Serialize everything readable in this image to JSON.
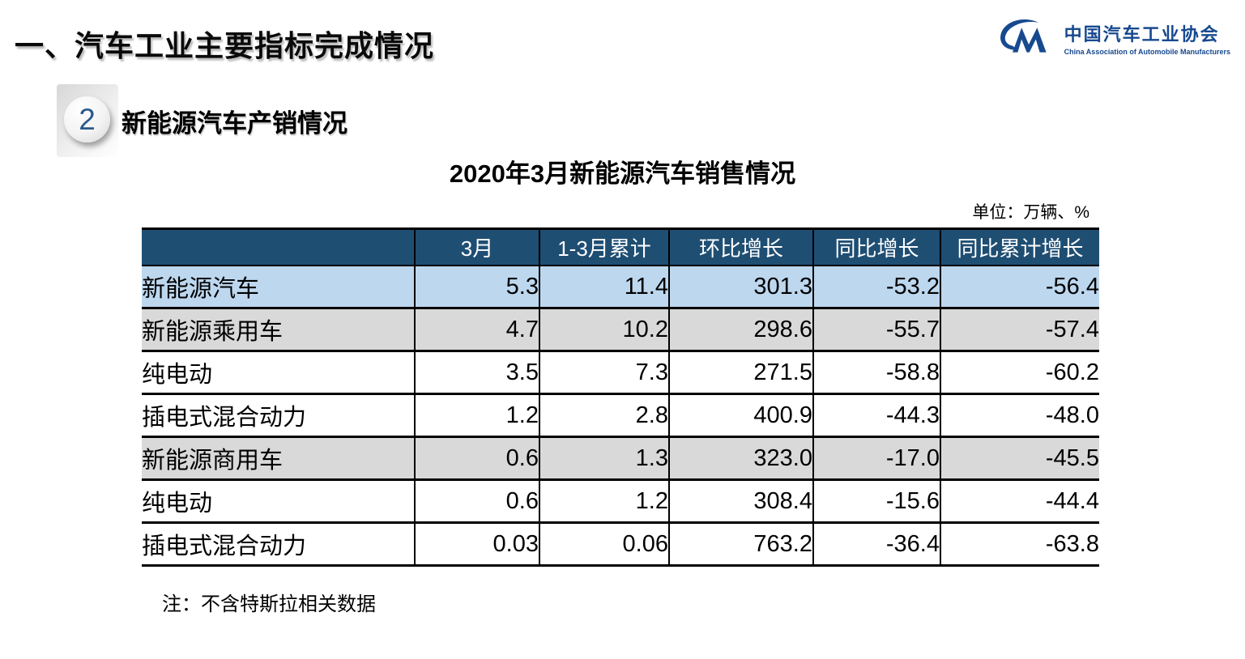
{
  "page_title": "一、汽车工业主要指标完成情况",
  "logo": {
    "name_cn": "中国汽车工业协会",
    "name_en": "China Association of Automobile Manufacturers"
  },
  "section": {
    "number": "2",
    "title": "新能源汽车产销情况"
  },
  "table_title": "2020年3月新能源汽车销售情况",
  "unit_label": "单位：万辆、%",
  "table": {
    "columns": [
      "",
      "3月",
      "1-3月累计",
      "环比增长",
      "同比增长",
      "同比累计增长"
    ],
    "rows": [
      {
        "label": "新能源汽车",
        "indent": 0,
        "style": "blue",
        "values": [
          "5.3",
          "11.4",
          "301.3",
          "-53.2",
          "-56.4"
        ]
      },
      {
        "label": "新能源乘用车",
        "indent": 1,
        "style": "gray",
        "values": [
          "4.7",
          "10.2",
          "298.6",
          "-55.7",
          "-57.4"
        ]
      },
      {
        "label": "纯电动",
        "indent": 2,
        "style": "white",
        "values": [
          "3.5",
          "7.3",
          "271.5",
          "-58.8",
          "-60.2"
        ]
      },
      {
        "label": "插电式混合动力",
        "indent": 2,
        "style": "white",
        "values": [
          "1.2",
          "2.8",
          "400.9",
          "-44.3",
          "-48.0"
        ]
      },
      {
        "label": "新能源商用车",
        "indent": 1,
        "style": "gray",
        "values": [
          "0.6",
          "1.3",
          "323.0",
          "-17.0",
          "-45.5"
        ]
      },
      {
        "label": "纯电动",
        "indent": 2,
        "style": "white",
        "values": [
          "0.6",
          "1.2",
          "308.4",
          "-15.6",
          "-44.4"
        ]
      },
      {
        "label": "插电式混合动力",
        "indent": 2,
        "style": "white",
        "values": [
          "0.03",
          "0.06",
          "763.2",
          "-36.4",
          "-63.8"
        ]
      }
    ]
  },
  "note": "注：不含特斯拉相关数据",
  "colors": {
    "header_bg": "#1F4E73",
    "row_highlight_blue": "#BDD7EE",
    "row_gray": "#D9D9D9",
    "logo_blue": "#17498F",
    "badge_number_blue": "#2A5A8C"
  }
}
